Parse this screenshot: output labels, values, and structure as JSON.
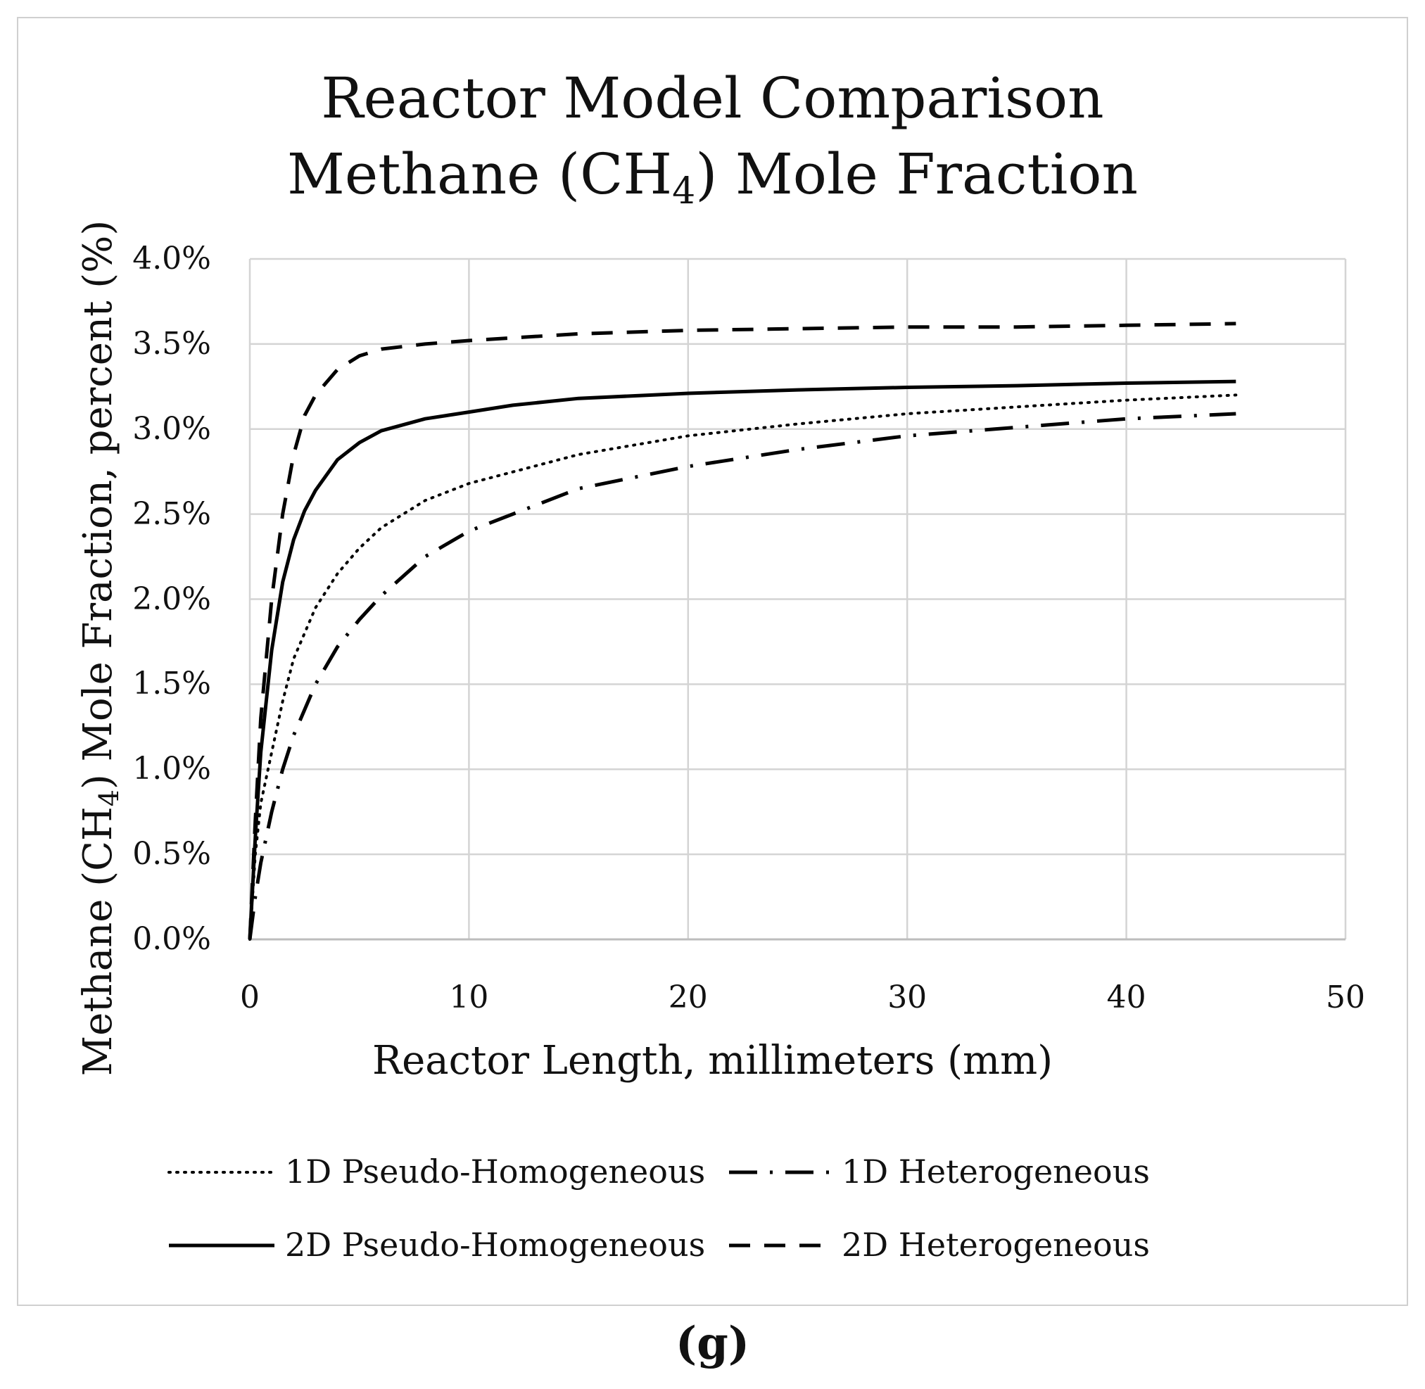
{
  "chart_data": {
    "type": "line",
    "title": "Reactor Model Comparison",
    "subtitle_prefix": "Methane (CH",
    "subtitle_subscript": "4",
    "subtitle_suffix": ") Mole Fraction",
    "xlabel": "Reactor Length, millimeters (mm)",
    "ylabel_prefix": "Methane (CH",
    "ylabel_subscript": "4",
    "ylabel_suffix": ") Mole Fraction, percent (%)",
    "xlim": [
      0,
      50
    ],
    "ylim": [
      0,
      4.0
    ],
    "x_ticks": [
      0,
      10,
      20,
      30,
      40,
      50
    ],
    "x_tick_labels": [
      "0",
      "10",
      "20",
      "30",
      "40",
      "50"
    ],
    "y_ticks": [
      0,
      0.5,
      1.0,
      1.5,
      2.0,
      2.5,
      3.0,
      3.5,
      4.0
    ],
    "y_tick_labels": [
      "0.0%",
      "0.5%",
      "1.0%",
      "1.5%",
      "2.0%",
      "2.5%",
      "3.0%",
      "3.5%",
      "4.0%"
    ],
    "grid": true,
    "legend_position": "bottom",
    "series": [
      {
        "name": "1D Pseudo-Homogeneous",
        "style": "dotted",
        "x": [
          0,
          0.25,
          0.5,
          1,
          1.5,
          2,
          3,
          4,
          5,
          6,
          8,
          10,
          15,
          20,
          25,
          30,
          35,
          40,
          45
        ],
        "y": [
          0,
          0.5,
          0.8,
          1.1,
          1.4,
          1.65,
          1.95,
          2.15,
          2.3,
          2.42,
          2.58,
          2.68,
          2.85,
          2.96,
          3.03,
          3.09,
          3.13,
          3.17,
          3.2
        ]
      },
      {
        "name": "1D Heterogeneous",
        "style": "dash-dot",
        "x": [
          0,
          0.25,
          0.5,
          1,
          1.5,
          2,
          3,
          4,
          5,
          6,
          8,
          10,
          15,
          20,
          25,
          30,
          35,
          40,
          45
        ],
        "y": [
          0,
          0.25,
          0.45,
          0.75,
          1.0,
          1.2,
          1.5,
          1.72,
          1.88,
          2.02,
          2.25,
          2.4,
          2.65,
          2.78,
          2.88,
          2.96,
          3.01,
          3.06,
          3.09
        ]
      },
      {
        "name": "2D Pseudo-Homogeneous",
        "style": "solid",
        "x": [
          0,
          0.25,
          0.5,
          1,
          1.5,
          2,
          2.5,
          3,
          4,
          5,
          6,
          8,
          10,
          12,
          15,
          20,
          25,
          30,
          35,
          40,
          45
        ],
        "y": [
          0,
          0.6,
          1.1,
          1.7,
          2.1,
          2.35,
          2.52,
          2.64,
          2.82,
          2.92,
          2.99,
          3.06,
          3.1,
          3.14,
          3.18,
          3.21,
          3.23,
          3.245,
          3.255,
          3.27,
          3.28
        ]
      },
      {
        "name": "2D Heterogeneous",
        "style": "dashed",
        "x": [
          0,
          0.25,
          0.5,
          1,
          1.5,
          2,
          2.5,
          3,
          4,
          5,
          6,
          8,
          10,
          15,
          20,
          25,
          30,
          35,
          40,
          45
        ],
        "y": [
          0,
          0.7,
          1.3,
          2.0,
          2.5,
          2.85,
          3.08,
          3.2,
          3.35,
          3.43,
          3.47,
          3.5,
          3.52,
          3.56,
          3.58,
          3.59,
          3.6,
          3.6,
          3.61,
          3.62
        ]
      }
    ]
  },
  "caption": "(g)"
}
